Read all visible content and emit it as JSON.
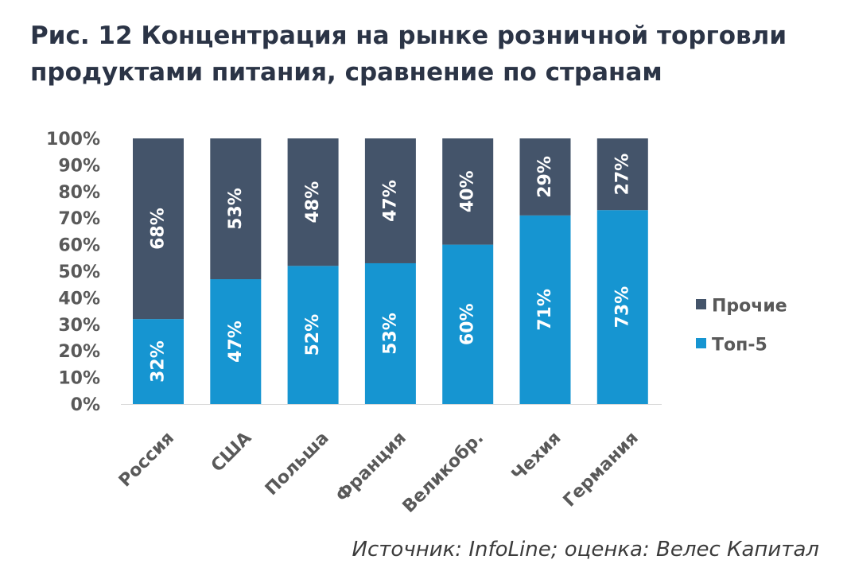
{
  "title": {
    "line1": "Рис. 12 Концентрация на рынке розничной торговли",
    "line2": "продуктами питания, сравнение по странам"
  },
  "source": "Источник: InfoLine; оценка: Велес Капитал",
  "colors": {
    "top5": "#1695d1",
    "others": "#44546a",
    "axis_text": "#595959",
    "title": "#2b3446"
  },
  "chart_data": {
    "type": "bar",
    "stacked": true,
    "title": "Рис. 12 Концентрация на рынке розничной торговли продуктами питания, сравнение по странам",
    "categories": [
      "Россия",
      "США",
      "Польша",
      "Франция",
      "Великобр.",
      "Чехия",
      "Германия"
    ],
    "series": [
      {
        "name": "Топ-5",
        "values": [
          32,
          47,
          52,
          53,
          60,
          71,
          73
        ],
        "labels": [
          "32%",
          "47%",
          "52%",
          "53%",
          "60%",
          "71%",
          "73%"
        ],
        "color": "#1695d1"
      },
      {
        "name": "Прочие",
        "values": [
          68,
          53,
          48,
          47,
          40,
          29,
          27
        ],
        "labels": [
          "68%",
          "53%",
          "48%",
          "47%",
          "40%",
          "29%",
          "27%"
        ],
        "color": "#44546a"
      }
    ],
    "y_ticks": [
      "0%",
      "10%",
      "20%",
      "30%",
      "40%",
      "50%",
      "60%",
      "70%",
      "80%",
      "90%",
      "100%"
    ],
    "ylim": [
      0,
      100
    ],
    "xlabel": "",
    "ylabel": "",
    "legend": {
      "position": "right",
      "entries": [
        "Прочие",
        "Топ-5"
      ]
    }
  }
}
